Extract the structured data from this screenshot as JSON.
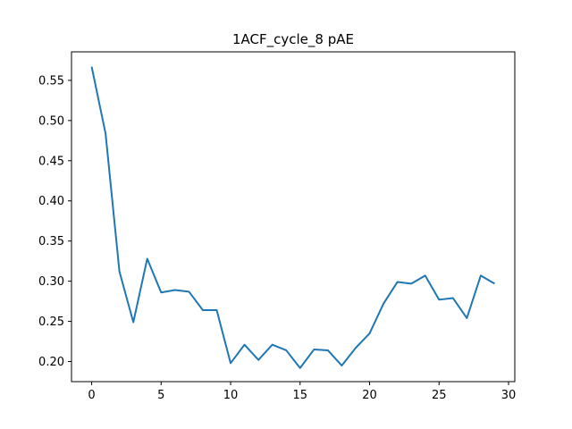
{
  "chart_data": {
    "type": "line",
    "title": "1ACF_cycle_8 pAE",
    "xlabel": "",
    "ylabel": "",
    "xlim": [
      -1.45,
      30.45
    ],
    "ylim": [
      0.175,
      0.5855
    ],
    "xticks": [
      0,
      5,
      10,
      15,
      20,
      25,
      30
    ],
    "yticks": [
      0.2,
      0.25,
      0.3,
      0.35,
      0.4,
      0.45,
      0.5,
      0.55
    ],
    "ytick_labels": [
      "0.20",
      "0.25",
      "0.30",
      "0.35",
      "0.40",
      "0.45",
      "0.50",
      "0.55"
    ],
    "grid": false,
    "line_color": "#1f77b4",
    "series": [
      {
        "x": [
          0,
          1,
          2,
          3,
          4,
          5,
          6,
          7,
          8,
          9,
          10,
          11,
          12,
          13,
          14,
          15,
          16,
          17,
          18,
          19,
          20,
          21,
          22,
          23,
          24,
          25,
          26,
          27,
          28,
          29
        ],
        "values": [
          0.567,
          0.484,
          0.312,
          0.249,
          0.328,
          0.286,
          0.289,
          0.287,
          0.264,
          0.264,
          0.198,
          0.221,
          0.202,
          0.221,
          0.214,
          0.192,
          0.215,
          0.214,
          0.195,
          0.217,
          0.235,
          0.272,
          0.299,
          0.297,
          0.307,
          0.277,
          0.279,
          0.254,
          0.307,
          0.297
        ]
      }
    ]
  }
}
